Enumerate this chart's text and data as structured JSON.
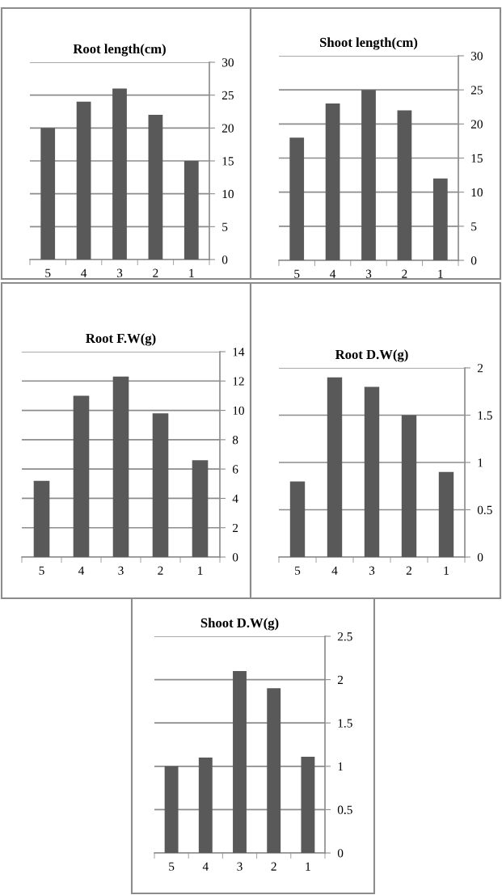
{
  "chart_data": [
    {
      "type": "bar",
      "title": "Root length(cm)",
      "categories": [
        "5",
        "4",
        "3",
        "2",
        "1"
      ],
      "values": [
        20,
        24,
        26,
        22,
        15
      ],
      "color": "#595959",
      "ylim": [
        0,
        30
      ],
      "yticks": [
        0,
        5,
        10,
        15,
        20,
        25,
        30
      ],
      "grid": "y"
    },
    {
      "type": "bar",
      "title": "Shoot length(cm)",
      "categories": [
        "5",
        "4",
        "3",
        "2",
        "1"
      ],
      "values": [
        18,
        23,
        25,
        22,
        12
      ],
      "color": "#595959",
      "ylim": [
        0,
        30
      ],
      "yticks": [
        0,
        5,
        10,
        15,
        20,
        25,
        30
      ],
      "grid": "y"
    },
    {
      "type": "bar",
      "title": "Root F.W(g)",
      "categories": [
        "5",
        "4",
        "3",
        "2",
        "1"
      ],
      "values": [
        5.2,
        11,
        12.3,
        9.8,
        6.6
      ],
      "color": "#595959",
      "ylim": [
        0,
        14
      ],
      "yticks": [
        0,
        2,
        4,
        6,
        8,
        10,
        12,
        14
      ],
      "grid": "y"
    },
    {
      "type": "bar",
      "title": "Root D.W(g)",
      "categories": [
        "5",
        "4",
        "3",
        "2",
        "1"
      ],
      "values": [
        0.8,
        1.9,
        1.8,
        1.5,
        0.9
      ],
      "color": "#595959",
      "ylim": [
        0,
        2
      ],
      "yticks": [
        0,
        0.5,
        1,
        1.5,
        2
      ],
      "grid": "y"
    },
    {
      "type": "bar",
      "title": "Shoot D.W(g)",
      "categories": [
        "5",
        "4",
        "3",
        "2",
        "1"
      ],
      "values": [
        1.0,
        1.1,
        2.1,
        1.9,
        1.11
      ],
      "color": "#595959",
      "ylim": [
        0,
        2.5
      ],
      "yticks": [
        0,
        0.5,
        1,
        1.5,
        2,
        2.5
      ],
      "grid": "y"
    }
  ]
}
